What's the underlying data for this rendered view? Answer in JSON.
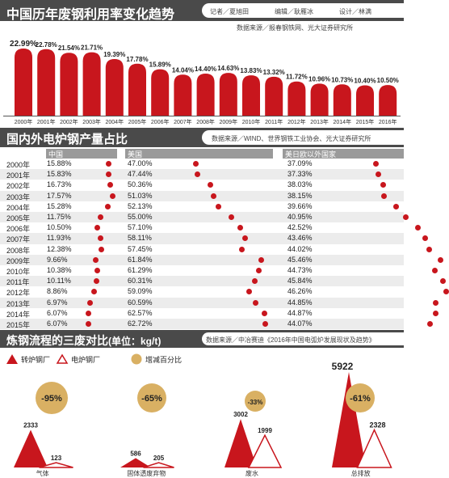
{
  "section1": {
    "title": "中国历年废钢利用率变化趋势",
    "credits": [
      "记者／夏旭田",
      "编辑／耿雁冰",
      "设计／林满"
    ],
    "source": "数据来源／报春钢铁网、光大证券研究所"
  },
  "section2": {
    "title": "国内外电炉钢产量占比",
    "source": "数据来源／WIND、世界钢铁工业协会、光大证券研究所",
    "columns": [
      "中国",
      "美国",
      "美日欧以外国家"
    ]
  },
  "section3": {
    "title": "炼钢流程的三废对比",
    "unit": "(单位：kg/t)",
    "source": "数据来源／中冶赛迪《2016年中国电弧炉发展现状及趋势》",
    "legend": [
      "转炉钢厂",
      "电炉钢厂",
      "增减百分比"
    ]
  },
  "chart_data": [
    {
      "type": "bar",
      "title": "中国历年废钢利用率变化趋势",
      "categories": [
        "2000年",
        "2001年",
        "2002年",
        "2003年",
        "2004年",
        "2005年",
        "2006年",
        "2007年",
        "2008年",
        "2009年",
        "2010年",
        "2011年",
        "2012年",
        "2013年",
        "2014年",
        "2015年",
        "2016年"
      ],
      "values": [
        22.99,
        22.78,
        21.54,
        21.71,
        19.39,
        17.78,
        15.89,
        14.04,
        14.4,
        14.63,
        13.83,
        13.32,
        11.72,
        10.96,
        10.73,
        10.4,
        10.5
      ],
      "labels": [
        "22.99%",
        "22.78%",
        "21.54%",
        "21.71%",
        "19.39%",
        "17.78%",
        "15.89%",
        "14.04%",
        "14.40%",
        "14.63%",
        "13.83%",
        "13.32%",
        "11.72%",
        "10.96%",
        "10.73%",
        "10.40%",
        "10.50%"
      ],
      "color": "#c8161d"
    },
    {
      "type": "table",
      "title": "国内外电炉钢产量占比",
      "columns": [
        "中国",
        "美国",
        "美日欧以外国家"
      ],
      "rows": [
        {
          "year": "2000年",
          "values": [
            15.88,
            47.0,
            37.09
          ],
          "labels": [
            "15.88%",
            "47.00%",
            "37.09%"
          ]
        },
        {
          "year": "2001年",
          "values": [
            15.83,
            47.44,
            37.33
          ],
          "labels": [
            "15.83%",
            "47.44%",
            "37.33%"
          ]
        },
        {
          "year": "2002年",
          "values": [
            16.73,
            50.36,
            38.03
          ],
          "labels": [
            "16.73%",
            "50.36%",
            "38.03%"
          ]
        },
        {
          "year": "2003年",
          "values": [
            17.57,
            51.03,
            38.15
          ],
          "labels": [
            "17.57%",
            "51.03%",
            "38.15%"
          ]
        },
        {
          "year": "2004年",
          "values": [
            15.28,
            52.13,
            39.66
          ],
          "labels": [
            "15.28%",
            "52.13%",
            "39.66%"
          ]
        },
        {
          "year": "2005年",
          "values": [
            11.75,
            55.0,
            40.95
          ],
          "labels": [
            "11.75%",
            "55.00%",
            "40.95%"
          ]
        },
        {
          "year": "2006年",
          "values": [
            10.5,
            57.1,
            42.52
          ],
          "labels": [
            "10.50%",
            "57.10%",
            "42.52%"
          ]
        },
        {
          "year": "2007年",
          "values": [
            11.93,
            58.11,
            43.46
          ],
          "labels": [
            "11.93%",
            "58.11%",
            "43.46%"
          ]
        },
        {
          "year": "2008年",
          "values": [
            12.38,
            57.45,
            44.02
          ],
          "labels": [
            "12.38%",
            "57.45%",
            "44.02%"
          ]
        },
        {
          "year": "2009年",
          "values": [
            9.66,
            61.84,
            45.46
          ],
          "labels": [
            "9.66%",
            "61.84%",
            "45.46%"
          ]
        },
        {
          "year": "2010年",
          "values": [
            10.38,
            61.29,
            44.73
          ],
          "labels": [
            "10.38%",
            "61.29%",
            "44.73%"
          ]
        },
        {
          "year": "2011年",
          "values": [
            10.11,
            60.31,
            45.84
          ],
          "labels": [
            "10.11%",
            "60.31%",
            "45.84%"
          ]
        },
        {
          "year": "2012年",
          "values": [
            8.86,
            59.09,
            46.26
          ],
          "labels": [
            "8.86%",
            "59.09%",
            "46.26%"
          ]
        },
        {
          "year": "2013年",
          "values": [
            6.97,
            60.59,
            44.85
          ],
          "labels": [
            "6.97%",
            "60.59%",
            "44.85%"
          ]
        },
        {
          "year": "2014年",
          "values": [
            6.07,
            62.57,
            44.87
          ],
          "labels": [
            "6.07%",
            "62.57%",
            "44.87%"
          ]
        },
        {
          "year": "2015年",
          "values": [
            6.07,
            62.72,
            44.07
          ],
          "labels": [
            "6.07%",
            "62.72%",
            "44.07%"
          ]
        }
      ]
    },
    {
      "type": "bar",
      "title": "炼钢流程的三废对比",
      "unit": "kg/t",
      "categories": [
        "气体",
        "固体透废弃物",
        "废水",
        "总排放"
      ],
      "series": [
        {
          "name": "转炉钢厂",
          "values": [
            2333,
            586,
            3002,
            5922
          ]
        },
        {
          "name": "电炉钢厂",
          "values": [
            123,
            205,
            1999,
            2328
          ]
        }
      ],
      "change_labels": [
        "-95%",
        "-65%",
        "-33%",
        "-61%"
      ],
      "colors": {
        "converter": "#c8161d",
        "eaf": "#c8161d",
        "circle": "#d9b063"
      }
    }
  ]
}
